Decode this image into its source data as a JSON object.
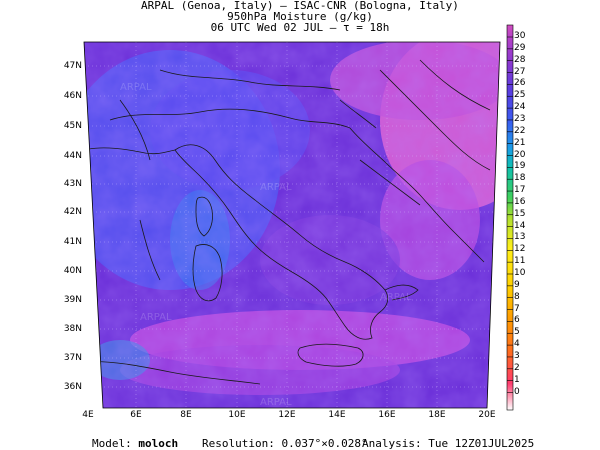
{
  "header": {
    "line1": "ARPAL (Genoa, Italy)  —  ISAC-CNR (Bologna, Italy)",
    "line2": "950hPa Moisture (g/kg)",
    "line3": "06 UTC Wed 02 JUL  —  τ = 18h"
  },
  "axes": {
    "lat_labels": [
      "47N",
      "46N",
      "45N",
      "44N",
      "43N",
      "42N",
      "41N",
      "40N",
      "39N",
      "38N",
      "37N",
      "36N"
    ],
    "lon_labels": [
      "4E",
      "6E",
      "8E",
      "10E",
      "12E",
      "14E",
      "16E",
      "18E",
      "20E"
    ]
  },
  "colorbar": {
    "labels": [
      "30",
      "29",
      "28",
      "27",
      "26",
      "25",
      "24",
      "23",
      "22",
      "21",
      "20",
      "19",
      "18",
      "17",
      "16",
      "15",
      "14",
      "13",
      "12",
      "11",
      "10",
      "9",
      "8",
      "7",
      "6",
      "5",
      "4",
      "3",
      "2",
      "1",
      "0"
    ]
  },
  "watermark": "ARPAL",
  "footer": {
    "model_label": "Model:",
    "model_value": "moloch",
    "resolution_label": "Resolution:",
    "resolution_value": "0.037°×0.028°",
    "analysis_label": "Analysis:",
    "analysis_value": "Tue 12Z01JUL2025"
  },
  "colors": {
    "field_dark": "#6a2ed8",
    "field_blue": "#4d55f2",
    "field_magenta": "#c04ae0",
    "field_pink": "#e15fd2",
    "coast": "#1a1a1a"
  }
}
